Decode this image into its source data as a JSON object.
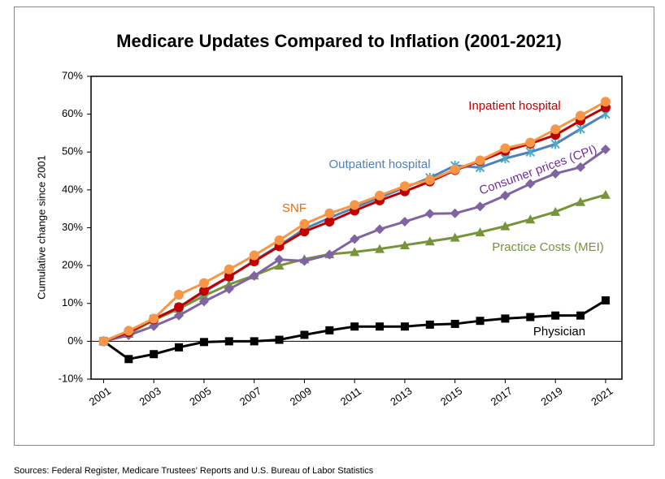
{
  "chart_data": {
    "type": "line",
    "title": "Medicare Updates Compared to Inflation (2001-2021)",
    "y_label": "Cumulative change since 2001",
    "source": "Sources:  Federal Register, Medicare Trustees' Reports and U.S. Bureau of Labor Statistics",
    "x": [
      2001,
      2002,
      2003,
      2004,
      2005,
      2006,
      2007,
      2008,
      2009,
      2010,
      2011,
      2012,
      2013,
      2014,
      2015,
      2016,
      2017,
      2018,
      2019,
      2020,
      2021
    ],
    "xlim": [
      2000.5,
      2021.65
    ],
    "xticks": [
      2001,
      2003,
      2005,
      2007,
      2009,
      2011,
      2013,
      2015,
      2017,
      2019,
      2021
    ],
    "ylim": [
      -10,
      70
    ],
    "yticks": [
      {
        "value": -10,
        "label": "-10%"
      },
      {
        "value": 0,
        "label": "0%"
      },
      {
        "value": 10,
        "label": "10%"
      },
      {
        "value": 20,
        "label": "20%"
      },
      {
        "value": 30,
        "label": "30%"
      },
      {
        "value": 40,
        "label": "40%"
      },
      {
        "value": 50,
        "label": "50%"
      },
      {
        "value": 60,
        "label": "60%"
      },
      {
        "value": 70,
        "label": "70%"
      }
    ],
    "grid": false,
    "series": [
      {
        "name": "Physician",
        "color": "#000000",
        "marker": "square",
        "values": [
          0,
          -4.7,
          -3.4,
          -1.6,
          -0.2,
          0,
          0,
          0.4,
          1.7,
          2.9,
          3.9,
          3.9,
          3.9,
          4.4,
          4.6,
          5.4,
          6.0,
          6.4,
          6.8,
          6.8,
          10.8
        ]
      },
      {
        "name": "Practice Costs (MEI)",
        "color": "#77933c",
        "marker": "triangle",
        "values": [
          0,
          2.0,
          5.6,
          8.6,
          12.0,
          15.0,
          17.4,
          20.0,
          21.7,
          23.0,
          23.6,
          24.4,
          25.4,
          26.4,
          27.4,
          28.8,
          30.4,
          32.2,
          34.2,
          36.8,
          38.7
        ]
      },
      {
        "name": "Consumer prices (CPI)",
        "color": "#7030a0",
        "line_color": "#8064a2",
        "marker": "diamond",
        "values": [
          0,
          1.6,
          4.0,
          6.8,
          10.5,
          13.8,
          17.3,
          21.6,
          21.2,
          22.9,
          27.0,
          29.6,
          31.6,
          33.7,
          33.8,
          35.6,
          38.5,
          41.6,
          44.3,
          46.0,
          50.7
        ]
      },
      {
        "name": "Outpatient hospital",
        "color": "#4f81bd",
        "marker": "x",
        "values": [
          0,
          2.4,
          5.9,
          9.0,
          13.0,
          17.0,
          21.3,
          25.3,
          29.7,
          32.6,
          35.3,
          38.0,
          40.6,
          43.2,
          46.4,
          45.9,
          48.3,
          50.0,
          52.1,
          56.1,
          60.0
        ]
      },
      {
        "name": "Inpatient hospital",
        "color": "#c00000",
        "marker": "circle",
        "values": [
          0,
          2.4,
          5.8,
          9.0,
          13.3,
          17.1,
          21.1,
          25.1,
          29.0,
          31.6,
          34.5,
          37.2,
          39.6,
          42.2,
          45.2,
          47.6,
          50.3,
          52.2,
          54.5,
          58.3,
          61.8
        ]
      },
      {
        "name": "SNF",
        "color": "#e46c0a",
        "line_color": "#f79646",
        "marker": "circle",
        "values": [
          0,
          2.8,
          6.0,
          12.3,
          15.4,
          19.0,
          22.7,
          26.7,
          31.0,
          33.8,
          36.0,
          38.5,
          41.0,
          42.6,
          45.4,
          47.8,
          51.0,
          52.5,
          56.0,
          59.6,
          63.3
        ]
      }
    ]
  }
}
